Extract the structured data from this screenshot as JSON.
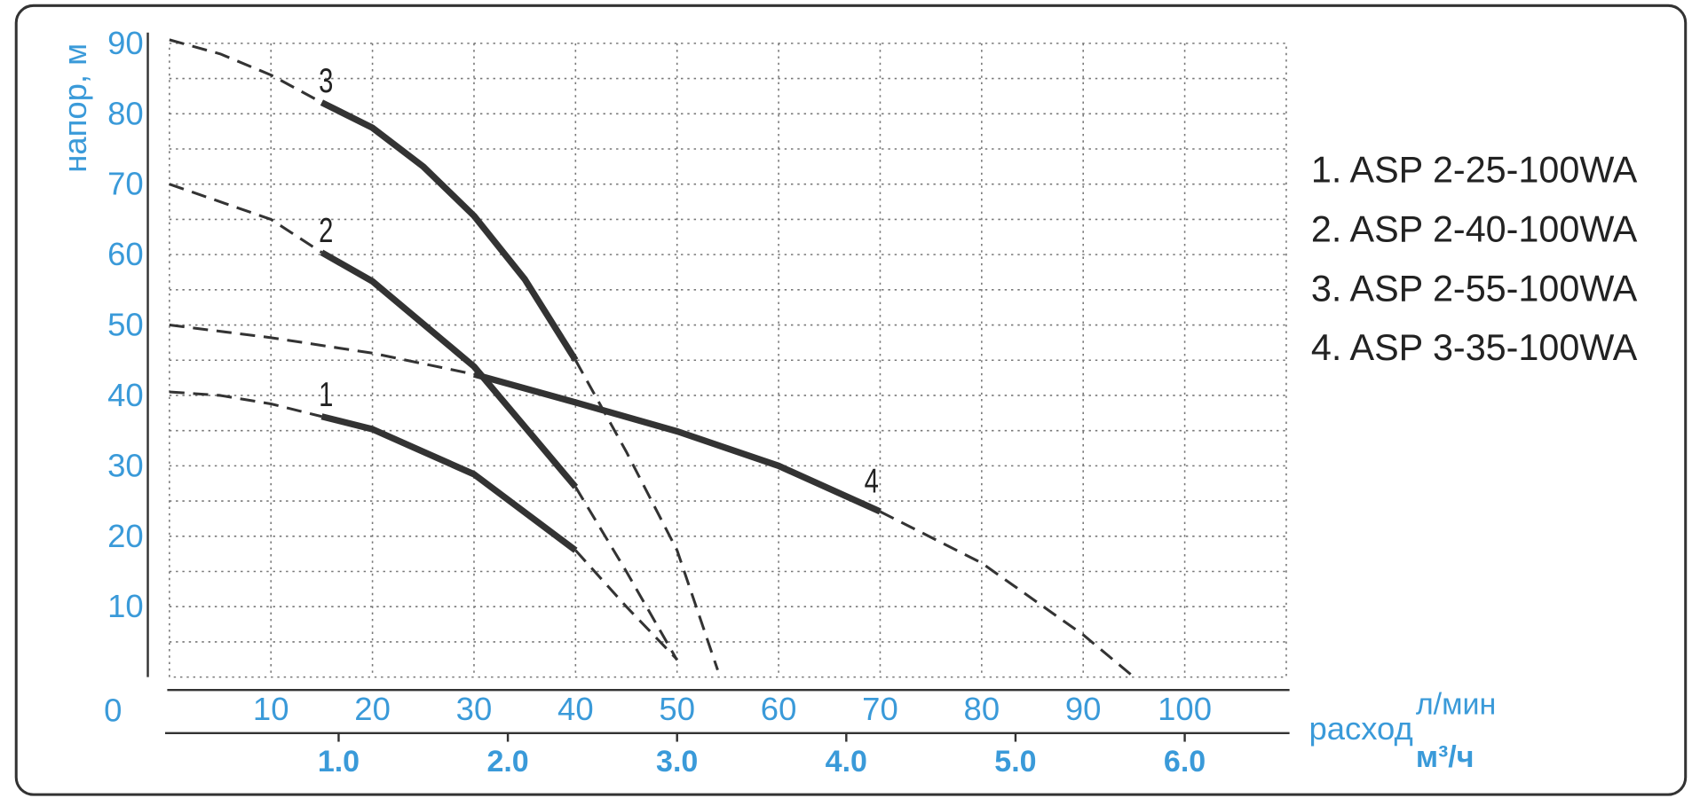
{
  "chart_data": {
    "type": "line",
    "y_label": "напор, м",
    "x_label": "расход",
    "x_unit": "л/мин",
    "x2_unit": "м³/ч",
    "xlim": [
      0,
      110
    ],
    "xticks": [
      10,
      20,
      30,
      40,
      50,
      60,
      70,
      80,
      90,
      100
    ],
    "x2lim": [
      0,
      6.6
    ],
    "x2ticks": [
      {
        "value": 1,
        "label": "1.0"
      },
      {
        "value": 2,
        "label": "2.0"
      },
      {
        "value": 3,
        "label": "3.0"
      },
      {
        "value": 4,
        "label": "4.0"
      },
      {
        "value": 5,
        "label": "5.0"
      },
      {
        "value": 6,
        "label": "6.0"
      }
    ],
    "ylim": [
      0,
      90
    ],
    "yticks": [
      0,
      10,
      20,
      30,
      40,
      50,
      60,
      70,
      80,
      90
    ],
    "yminor": [
      5,
      15,
      25,
      35,
      45,
      55,
      65,
      75,
      85
    ],
    "grid": true,
    "series": [
      {
        "name": "1. ASP 2-25-100WA",
        "label": "1",
        "color": "#333333",
        "segments": [
          {
            "style": "dashed",
            "x": [
              0,
              5,
              10,
              15
            ],
            "values": [
              40.5,
              40,
              38.8,
              37
            ]
          },
          {
            "style": "solid",
            "x": [
              15,
              20,
              30,
              40
            ],
            "values": [
              37,
              35.2,
              28.8,
              18
            ]
          },
          {
            "style": "dashed",
            "x": [
              40,
              45,
              50
            ],
            "values": [
              18,
              10,
              2.5
            ]
          }
        ]
      },
      {
        "name": "2. ASP 2-40-100WA",
        "label": "2",
        "color": "#333333",
        "segments": [
          {
            "style": "dashed",
            "x": [
              0,
              10,
              15
            ],
            "values": [
              70,
              65,
              60.3
            ]
          },
          {
            "style": "solid",
            "x": [
              15,
              20,
              30,
              40
            ],
            "values": [
              60.3,
              56.2,
              44.1,
              27
            ]
          },
          {
            "style": "dashed",
            "x": [
              40,
              45,
              50
            ],
            "values": [
              27,
              15,
              2.4
            ]
          }
        ]
      },
      {
        "name": "3. ASP 2-55-100WA",
        "label": "3",
        "color": "#333333",
        "segments": [
          {
            "style": "dashed",
            "x": [
              0,
              5,
              10,
              15
            ],
            "values": [
              90.5,
              88.5,
              85.5,
              81.6
            ]
          },
          {
            "style": "solid",
            "x": [
              15,
              20,
              25,
              30,
              35,
              40
            ],
            "values": [
              81.6,
              78,
              72.5,
              65.5,
              56.5,
              45
            ]
          },
          {
            "style": "dashed",
            "x": [
              40,
              45,
              50,
              54
            ],
            "values": [
              45,
              32,
              18,
              1
            ]
          }
        ]
      },
      {
        "name": "4. ASP 3-35-100WA",
        "label": "4",
        "color": "#333333",
        "segments": [
          {
            "style": "dashed",
            "x": [
              0,
              10,
              20,
              30
            ],
            "values": [
              50,
              48.2,
              46,
              43
            ]
          },
          {
            "style": "solid",
            "x": [
              30,
              40,
              50,
              60,
              70
            ],
            "values": [
              43,
              39,
              34.9,
              30,
              23.5
            ]
          },
          {
            "style": "dashed",
            "x": [
              70,
              80,
              90,
              95
            ],
            "values": [
              23.5,
              16.2,
              6,
              0
            ]
          }
        ]
      }
    ]
  }
}
